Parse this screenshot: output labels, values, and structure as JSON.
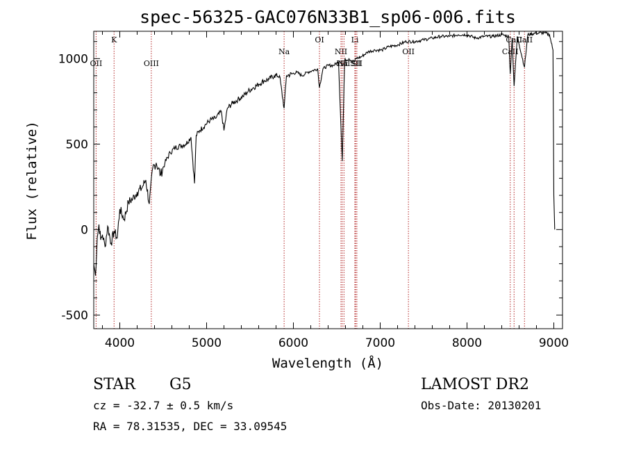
{
  "chart_data": {
    "type": "line",
    "title": "spec-56325-GAC076N33B1_sp06-006.fits",
    "xlabel": "Wavelength (Å)",
    "ylabel": "Flux (relative)",
    "xlim": [
      3700,
      9100
    ],
    "ylim": [
      -580,
      1160
    ],
    "xticks": [
      4000,
      5000,
      6000,
      7000,
      8000,
      9000
    ],
    "yticks": [
      -500,
      0,
      500,
      1000
    ],
    "grid": false,
    "series": [
      {
        "name": "spectrum",
        "x": [
          3700,
          3720,
          3740,
          3760,
          3780,
          3800,
          3830,
          3860,
          3900,
          3935,
          3970,
          4000,
          4050,
          4100,
          4150,
          4200,
          4250,
          4300,
          4340,
          4380,
          4420,
          4470,
          4520,
          4580,
          4640,
          4700,
          4760,
          4820,
          4861,
          4880,
          4920,
          4980,
          5040,
          5100,
          5170,
          5200,
          5240,
          5300,
          5360,
          5420,
          5480,
          5540,
          5600,
          5660,
          5720,
          5780,
          5840,
          5893,
          5920,
          5980,
          6040,
          6100,
          6160,
          6220,
          6280,
          6300,
          6340,
          6400,
          6460,
          6520,
          6563,
          6590,
          6640,
          6700,
          6720,
          6780,
          6860,
          6940,
          7020,
          7100,
          7200,
          7300,
          7400,
          7500,
          7600,
          7700,
          7800,
          7900,
          8000,
          8100,
          8200,
          8300,
          8400,
          8480,
          8498,
          8520,
          8542,
          8580,
          8662,
          8700,
          8800,
          8900,
          8950,
          8990,
          9000,
          9010
        ],
        "y": [
          -200,
          -270,
          -50,
          30,
          -60,
          -30,
          -100,
          20,
          -80,
          -10,
          -50,
          120,
          60,
          160,
          180,
          220,
          240,
          290,
          150,
          360,
          390,
          320,
          390,
          450,
          480,
          490,
          500,
          540,
          270,
          550,
          580,
          610,
          640,
          650,
          690,
          580,
          710,
          740,
          760,
          780,
          810,
          830,
          850,
          870,
          880,
          900,
          900,
          710,
          900,
          910,
          920,
          900,
          920,
          930,
          940,
          830,
          940,
          960,
          960,
          980,
          400,
          990,
          1000,
          980,
          1000,
          1010,
          1040,
          1050,
          1050,
          1070,
          1080,
          1100,
          1100,
          1110,
          1120,
          1130,
          1130,
          1140,
          1140,
          1120,
          1130,
          1130,
          1140,
          1130,
          910,
          1120,
          840,
          1130,
          950,
          1140,
          1150,
          1150,
          1140,
          1050,
          200,
          0
        ]
      }
    ],
    "lines": [
      {
        "label": "OII",
        "wavelength": 3727,
        "row": "lower"
      },
      {
        "label": "K",
        "wavelength": 3934,
        "row": "upper"
      },
      {
        "label": "OIII",
        "wavelength": 4363,
        "row": "lower"
      },
      {
        "label": "Na",
        "wavelength": 5893,
        "row": "middle"
      },
      {
        "label": "OI",
        "wavelength": 6300,
        "row": "upper"
      },
      {
        "label": "NII",
        "wavelength": 6548,
        "row": "middle"
      },
      {
        "label": "Hα",
        "wavelength": 6563,
        "row": "lower"
      },
      {
        "label": "NII",
        "wavelength": 6583,
        "row": "lower"
      },
      {
        "label": "Li",
        "wavelength": 6708,
        "row": "upper"
      },
      {
        "label": "SII",
        "wavelength": 6716,
        "row": "lower"
      },
      {
        "label": "SII",
        "wavelength": 6731,
        "row": "lower"
      },
      {
        "label": "OII",
        "wavelength": 7325,
        "row": "middle"
      },
      {
        "label": "CaII",
        "wavelength": 8498,
        "row": "middle"
      },
      {
        "label": "CaII",
        "wavelength": 8542,
        "row": "upper"
      },
      {
        "label": "CaII",
        "wavelength": 8662,
        "row": "upper"
      }
    ],
    "line_color": "#b22222"
  },
  "info": {
    "object_class": "STAR",
    "subclass": "G5",
    "survey": "LAMOST DR2",
    "cz_text": "cz = -32.7 ± 0.5 km/s",
    "obs_date_text": "Obs-Date: 20130201",
    "coords_text": "RA =  78.31535, DEC =  33.09545"
  }
}
